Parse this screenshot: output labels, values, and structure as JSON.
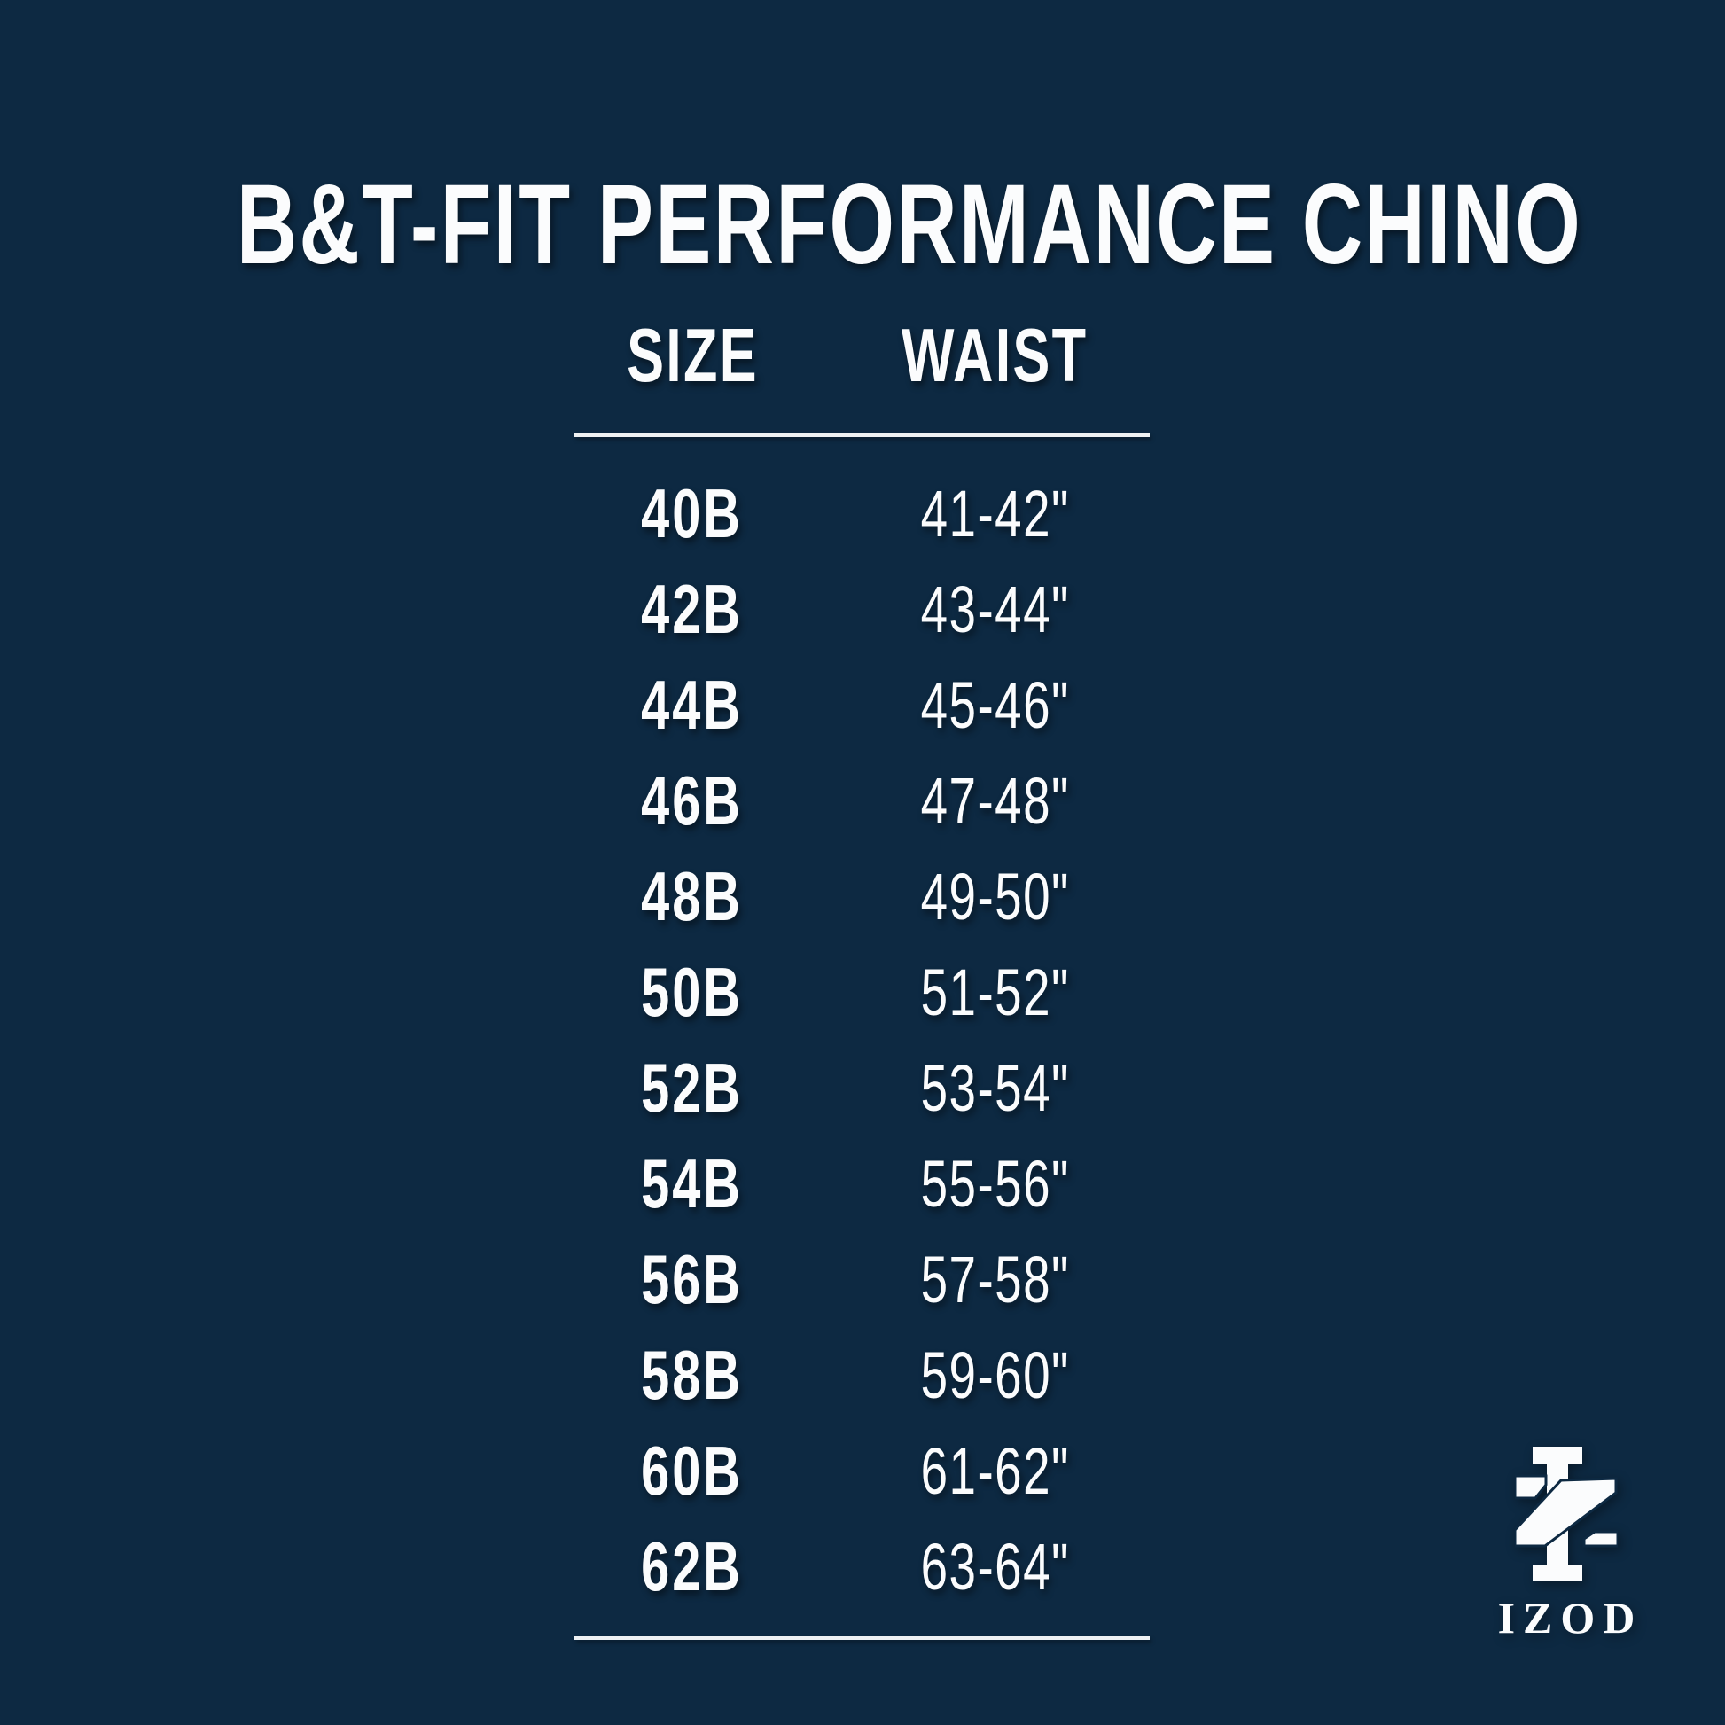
{
  "title": "B&T-FIT PERFORMANCE CHINO",
  "table": {
    "headers": {
      "size": "SIZE",
      "waist": "WAIST"
    },
    "rows": [
      {
        "size": "40B",
        "waist": "41-42\""
      },
      {
        "size": "42B",
        "waist": "43-44\""
      },
      {
        "size": "44B",
        "waist": "45-46\""
      },
      {
        "size": "46B",
        "waist": "47-48\""
      },
      {
        "size": "48B",
        "waist": "49-50\""
      },
      {
        "size": "50B",
        "waist": "51-52\""
      },
      {
        "size": "52B",
        "waist": "53-54\""
      },
      {
        "size": "54B",
        "waist": "55-56\""
      },
      {
        "size": "56B",
        "waist": "57-58\""
      },
      {
        "size": "58B",
        "waist": "59-60\""
      },
      {
        "size": "60B",
        "waist": "61-62\""
      },
      {
        "size": "62B",
        "waist": "63-64\""
      }
    ]
  },
  "logo": {
    "wordmark": "IZOD",
    "monogram_icon": "izod-iz-monogram"
  },
  "colors": {
    "background": "#0d2942",
    "text": "#fbfcfd",
    "rule": "#eef1f3"
  },
  "chart_data": {
    "type": "table",
    "title": "B&T-FIT PERFORMANCE CHINO",
    "columns": [
      "SIZE",
      "WAIST"
    ],
    "rows": [
      [
        "40B",
        "41-42\""
      ],
      [
        "42B",
        "43-44\""
      ],
      [
        "44B",
        "45-46\""
      ],
      [
        "46B",
        "47-48\""
      ],
      [
        "48B",
        "49-50\""
      ],
      [
        "50B",
        "51-52\""
      ],
      [
        "52B",
        "53-54\""
      ],
      [
        "54B",
        "55-56\""
      ],
      [
        "56B",
        "57-58\""
      ],
      [
        "58B",
        "59-60\""
      ],
      [
        "60B",
        "61-62\""
      ],
      [
        "62B",
        "63-64\""
      ]
    ],
    "layout": {
      "grid": false,
      "legend": "none",
      "brand_mark": "IZOD bottom-right"
    }
  }
}
